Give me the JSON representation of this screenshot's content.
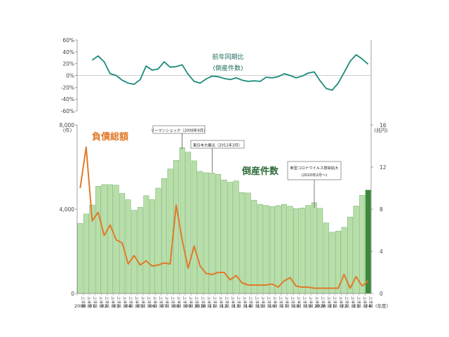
{
  "chart_data": [
    {
      "type": "line",
      "title": "前年同期比",
      "subtitle": "(倒産件数)",
      "ylim": [
        -60,
        60
      ],
      "y_ticks": [
        "60%",
        "40%",
        "20%",
        "0%",
        "-20%",
        "-40%",
        "-60%"
      ],
      "y_tick_values": [
        60,
        40,
        20,
        0,
        -20,
        -40,
        -60
      ],
      "color": "#1a8a7a",
      "values": [
        26,
        33,
        23,
        3,
        0,
        -8,
        -13,
        -15,
        -7,
        16,
        9,
        11,
        23,
        14,
        15,
        18,
        2,
        -10,
        -13,
        -6,
        -1,
        -2,
        -5,
        -7,
        -4,
        -8,
        -10,
        -9,
        -10,
        -3,
        -4,
        -2,
        3,
        0,
        -4,
        -1,
        4,
        6,
        -9,
        -22,
        -25,
        -13,
        5,
        24,
        35,
        28,
        19
      ]
    },
    {
      "type": "bar",
      "series_label": "倒産件数",
      "ylim": [
        0,
        8000
      ],
      "y_axis_title": "(件)",
      "y_ticks": [
        "8,000",
        "4,000",
        "0"
      ],
      "y_tick_values": [
        8000,
        4000,
        0
      ],
      "bar_color": "#b8dfa8",
      "bar_edge": "#6aaa6a",
      "last_bar_color": "#3a8a3a",
      "values": [
        3330,
        3770,
        4200,
        5090,
        5170,
        5170,
        5140,
        4750,
        4450,
        3950,
        4090,
        4640,
        4460,
        5000,
        5460,
        5910,
        6320,
        6920,
        6710,
        6300,
        5800,
        5730,
        5720,
        5660,
        5390,
        5280,
        5340,
        4790,
        4770,
        4430,
        4230,
        4180,
        4130,
        4170,
        4230,
        4140,
        4030,
        4060,
        4180,
        4310,
        4040,
        3350,
        2910,
        2960,
        3140,
        3630,
        4150,
        4660,
        4910
      ]
    },
    {
      "type": "line",
      "series_label": "負債総額",
      "ylim": [
        0,
        16
      ],
      "y_axis_title": "(兆円)",
      "y_ticks": [
        "16",
        "12",
        "8",
        "4",
        "0"
      ],
      "y_tick_values": [
        16,
        12,
        8,
        4,
        0
      ],
      "color": "#e07a2a",
      "values": [
        10.0,
        13.9,
        6.9,
        7.7,
        5.5,
        6.5,
        5.1,
        4.8,
        2.8,
        3.6,
        2.7,
        3.1,
        2.6,
        2.7,
        2.9,
        2.8,
        8.4,
        5.1,
        2.4,
        4.5,
        2.6,
        1.9,
        1.8,
        2.0,
        2.0,
        1.3,
        1.7,
        1.0,
        0.8,
        0.8,
        0.8,
        0.8,
        0.9,
        0.6,
        1.2,
        1.5,
        0.7,
        0.6,
        0.6,
        0.5,
        0.5,
        0.5,
        0.5,
        0.5,
        1.8,
        0.5,
        1.6,
        0.7,
        1.2
      ]
    }
  ],
  "x_axis": {
    "half_label": "上半期",
    "years": [
      "2000",
      "01",
      "02",
      "03",
      "04",
      "05",
      "06",
      "07",
      "08",
      "09",
      "2010",
      "11",
      "12",
      "13",
      "14",
      "15",
      "16",
      "17",
      "18",
      "19",
      "2020",
      "21",
      "22",
      "23",
      "24"
    ],
    "unit": "(年度)"
  },
  "annotations": [
    {
      "text": "リーマンショック（2008年9月）",
      "bar_index": 17
    },
    {
      "text": "東日本大震災（2011年3月）",
      "bar_index": 22
    },
    {
      "text": "新型コロナウイルス感染拡大",
      "text2": "(2020年2月～)",
      "bar_index": 40
    }
  ]
}
